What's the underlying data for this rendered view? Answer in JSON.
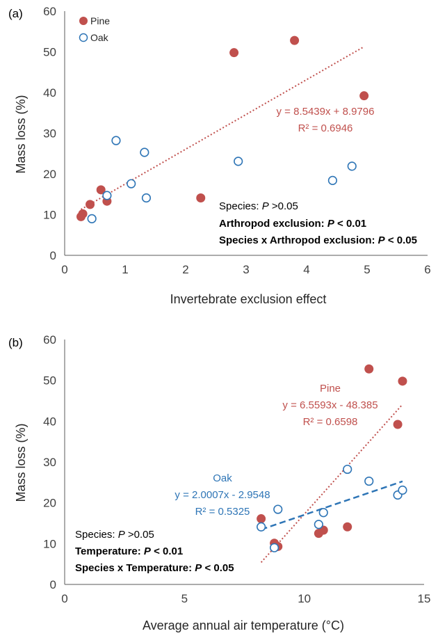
{
  "colors": {
    "pine": "#c0504d",
    "oak": "#2e75b6",
    "axis": "#404040"
  },
  "chart_data": [
    {
      "type": "scatter",
      "panel_label": "(a)",
      "xlabel": "Invertebrate exclusion effect",
      "ylabel": "Mass loss (%)",
      "xlim": [
        0,
        6
      ],
      "ylim": [
        0,
        60
      ],
      "xticks": [
        "0",
        "1",
        "2",
        "3",
        "4",
        "5",
        "6"
      ],
      "yticks": [
        "0",
        "10",
        "20",
        "30",
        "40",
        "50",
        "60"
      ],
      "grid": false,
      "legend_position": "top-left",
      "series": [
        {
          "name": "Pine",
          "marker": "filled-circle",
          "points": [
            [
              0.27,
              9.5
            ],
            [
              0.3,
              10.2
            ],
            [
              0.42,
              12.5
            ],
            [
              0.6,
              16.1
            ],
            [
              0.7,
              13.3
            ],
            [
              2.25,
              14.1
            ],
            [
              2.8,
              49.8
            ],
            [
              3.8,
              52.8
            ],
            [
              4.95,
              39.2
            ]
          ]
        },
        {
          "name": "Oak",
          "marker": "open-circle",
          "points": [
            [
              0.45,
              9.0
            ],
            [
              0.7,
              14.7
            ],
            [
              0.85,
              28.2
            ],
            [
              1.1,
              17.6
            ],
            [
              1.32,
              25.3
            ],
            [
              1.35,
              14.1
            ],
            [
              2.87,
              23.1
            ],
            [
              4.43,
              18.4
            ],
            [
              4.75,
              21.9
            ]
          ]
        }
      ],
      "trendlines": [
        {
          "series": "Pine",
          "style": "dotted",
          "slope": 8.5439,
          "intercept": 8.9796,
          "x_range": [
            0.27,
            4.95
          ],
          "equation": "y = 8.5439x + 8.9796",
          "r2": "R² = 0.6946"
        }
      ],
      "annotations": [
        {
          "prefix": "Species: ",
          "italic": "P",
          "suffix": " >0.05",
          "bold": false
        },
        {
          "prefix": "Arthropod exclusion: ",
          "italic": "P",
          "suffix": " < 0.01",
          "bold": true
        },
        {
          "prefix": "Species x Arthropod exclusion: ",
          "italic": "P",
          "suffix": " < 0.05",
          "bold": true
        }
      ]
    },
    {
      "type": "scatter",
      "panel_label": "(b)",
      "xlabel": "Average annual air temperature (°C)",
      "ylabel": "Mass loss (%)",
      "xlim": [
        0,
        15
      ],
      "ylim": [
        0,
        60
      ],
      "xticks": [
        "0",
        "5",
        "10",
        "15"
      ],
      "yticks": [
        "0",
        "10",
        "20",
        "30",
        "40",
        "50",
        "60"
      ],
      "grid": false,
      "series": [
        {
          "name": "Pine",
          "marker": "filled-circle",
          "points": [
            [
              8.2,
              16.1
            ],
            [
              8.75,
              10.1
            ],
            [
              8.8,
              9.6
            ],
            [
              8.9,
              9.3
            ],
            [
              10.6,
              12.5
            ],
            [
              10.8,
              13.3
            ],
            [
              11.8,
              14.1
            ],
            [
              12.7,
              52.8
            ],
            [
              13.9,
              39.2
            ],
            [
              14.1,
              49.8
            ]
          ]
        },
        {
          "name": "Oak",
          "marker": "open-circle",
          "points": [
            [
              8.2,
              14.1
            ],
            [
              8.75,
              9.0
            ],
            [
              8.9,
              18.4
            ],
            [
              10.6,
              14.7
            ],
            [
              10.8,
              17.6
            ],
            [
              11.8,
              28.2
            ],
            [
              12.7,
              25.3
            ],
            [
              13.9,
              21.9
            ],
            [
              14.1,
              23.1
            ]
          ]
        }
      ],
      "trendlines": [
        {
          "series": "Pine",
          "style": "dotted",
          "slope": 6.5593,
          "intercept": -48.385,
          "x_range": [
            8.2,
            14.1
          ],
          "label": "Pine",
          "equation": "y = 6.5593x - 48.385",
          "r2": "R² = 0.6598"
        },
        {
          "series": "Oak",
          "style": "dashed",
          "slope": 2.0007,
          "intercept": -2.9548,
          "x_range": [
            8.2,
            14.1
          ],
          "label": "Oak",
          "equation": "y = 2.0007x - 2.9548",
          "r2": "R² = 0.5325"
        }
      ],
      "annotations": [
        {
          "prefix": "Species: ",
          "italic": "P",
          "suffix": " >0.05",
          "bold": false
        },
        {
          "prefix": "Temperature: ",
          "italic": "P",
          "suffix": " < 0.01",
          "bold": true
        },
        {
          "prefix": "Species x Temperature: ",
          "italic": "P",
          "suffix": " < 0.05",
          "bold": true
        }
      ]
    }
  ]
}
